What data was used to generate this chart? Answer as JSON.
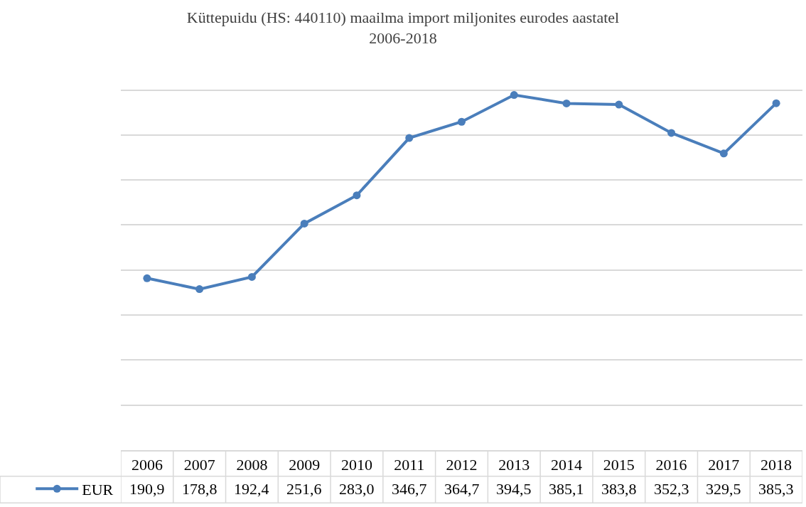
{
  "chart_data": {
    "type": "line",
    "title": "Küttepuidu (HS: 440110) maailma import miljonites eurodes aastatel\n2006-2018",
    "categories": [
      "2006",
      "2007",
      "2008",
      "2009",
      "2010",
      "2011",
      "2012",
      "2013",
      "2014",
      "2015",
      "2016",
      "2017",
      "2018"
    ],
    "series": [
      {
        "name": "EUR",
        "color": "#4a7ebb",
        "values": [
          190.9,
          178.8,
          192.4,
          251.6,
          283.0,
          346.7,
          364.7,
          394.5,
          385.1,
          383.8,
          352.3,
          329.5,
          385.3
        ],
        "value_labels": [
          "190,9",
          "178,8",
          "192,4",
          "251,6",
          "283,0",
          "346,7",
          "364,7",
          "394,5",
          "385,1",
          "383,8",
          "352,3",
          "329,5",
          "385,3"
        ]
      }
    ],
    "tick_labels": "x",
    "grid": "y",
    "legend": "bottom left",
    "marker": "circle",
    "line_style": "solid"
  }
}
